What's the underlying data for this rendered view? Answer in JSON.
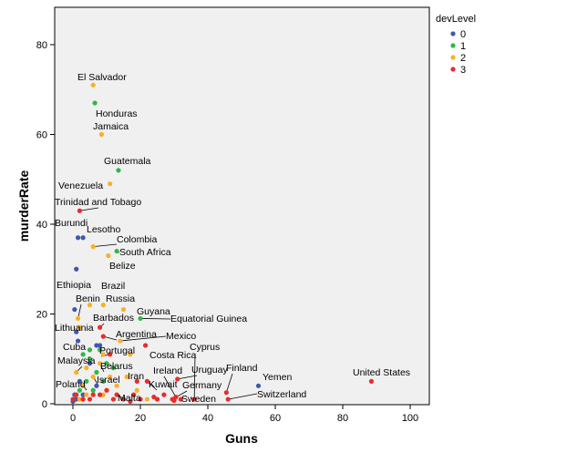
{
  "chart_data": {
    "type": "scatter",
    "title": "",
    "xlabel": "Guns",
    "ylabel": "murderRate",
    "xlim": [
      -5,
      105
    ],
    "ylim": [
      0,
      88
    ],
    "xticks": [
      "0",
      "20",
      "40",
      "60",
      "80",
      "100"
    ],
    "xtick_values": [
      0,
      20,
      40,
      60,
      80,
      100
    ],
    "yticks": [
      "0",
      "20",
      "40",
      "60",
      "80"
    ],
    "ytick_values": [
      0,
      20,
      40,
      60,
      80
    ],
    "grid": false,
    "legend": {
      "title": "devLevel",
      "position": "top-right",
      "entries": [
        {
          "label": "0",
          "color": "#3e58ac"
        },
        {
          "label": "1",
          "color": "#2eb848"
        },
        {
          "label": "2",
          "color": "#fbb022"
        },
        {
          "label": "3",
          "color": "#ec2a2a"
        }
      ]
    },
    "series": [
      {
        "name": "0",
        "color": "#3e58ac",
        "points": [
          {
            "x": 1.5,
            "y": 37
          },
          {
            "x": 3,
            "y": 37
          },
          {
            "x": 1,
            "y": 30
          },
          {
            "x": 0.5,
            "y": 21
          },
          {
            "x": 1,
            "y": 16
          },
          {
            "x": 1.5,
            "y": 14
          },
          {
            "x": 7,
            "y": 13
          },
          {
            "x": 8,
            "y": 13
          },
          {
            "x": 55,
            "y": 4
          },
          {
            "x": 0.5,
            "y": 2
          },
          {
            "x": 7,
            "y": 4
          },
          {
            "x": 3,
            "y": 2
          },
          {
            "x": 1,
            "y": 1
          },
          {
            "x": 2,
            "y": 5
          },
          {
            "x": 5,
            "y": 9
          },
          {
            "x": 0,
            "y": 0.5
          }
        ]
      },
      {
        "name": "1",
        "color": "#2eb848",
        "points": [
          {
            "x": 6.5,
            "y": 67
          },
          {
            "x": 13.5,
            "y": 52
          },
          {
            "x": 13,
            "y": 34
          },
          {
            "x": 20,
            "y": 19
          },
          {
            "x": 3,
            "y": 11
          },
          {
            "x": 5,
            "y": 12
          },
          {
            "x": 8,
            "y": 12
          },
          {
            "x": 5,
            "y": 10
          },
          {
            "x": 7,
            "y": 7
          },
          {
            "x": 10,
            "y": 9
          },
          {
            "x": 2,
            "y": 3
          },
          {
            "x": 4,
            "y": 5
          },
          {
            "x": 6,
            "y": 3
          },
          {
            "x": 9,
            "y": 5
          },
          {
            "x": 12,
            "y": 8
          }
        ]
      },
      {
        "name": "2",
        "color": "#fbb022",
        "points": [
          {
            "x": 6,
            "y": 71
          },
          {
            "x": 8.5,
            "y": 60
          },
          {
            "x": 11,
            "y": 49
          },
          {
            "x": 6,
            "y": 35
          },
          {
            "x": 10.5,
            "y": 33
          },
          {
            "x": 5,
            "y": 22
          },
          {
            "x": 9,
            "y": 22
          },
          {
            "x": 15,
            "y": 21
          },
          {
            "x": 1.5,
            "y": 19
          },
          {
            "x": 2,
            "y": 17
          },
          {
            "x": 14,
            "y": 14
          },
          {
            "x": 17,
            "y": 11
          },
          {
            "x": 9,
            "y": 11
          },
          {
            "x": 4,
            "y": 8
          },
          {
            "x": 8,
            "y": 9
          },
          {
            "x": 1,
            "y": 7
          },
          {
            "x": 6,
            "y": 6
          },
          {
            "x": 11,
            "y": 6
          },
          {
            "x": 16,
            "y": 6
          },
          {
            "x": 3,
            "y": 4
          },
          {
            "x": 13,
            "y": 4
          },
          {
            "x": 19,
            "y": 3
          },
          {
            "x": 4,
            "y": 2
          },
          {
            "x": 9,
            "y": 2
          },
          {
            "x": 15,
            "y": 1
          },
          {
            "x": 2,
            "y": 1
          },
          {
            "x": 22,
            "y": 1
          },
          {
            "x": 25,
            "y": 1
          }
        ]
      },
      {
        "name": "3",
        "color": "#ec2a2a",
        "points": [
          {
            "x": 2,
            "y": 43
          },
          {
            "x": 8,
            "y": 17
          },
          {
            "x": 9,
            "y": 15
          },
          {
            "x": 21.5,
            "y": 13
          },
          {
            "x": 11,
            "y": 11
          },
          {
            "x": 88.5,
            "y": 5
          },
          {
            "x": 45.5,
            "y": 2.5
          },
          {
            "x": 46,
            "y": 1
          },
          {
            "x": 31,
            "y": 5.5
          },
          {
            "x": 30.5,
            "y": 1.5
          },
          {
            "x": 29.5,
            "y": 1
          },
          {
            "x": 30,
            "y": 0.7
          },
          {
            "x": 22,
            "y": 5
          },
          {
            "x": 19,
            "y": 5
          },
          {
            "x": 18,
            "y": 2
          },
          {
            "x": 13,
            "y": 2
          },
          {
            "x": 24,
            "y": 1.5
          },
          {
            "x": 25,
            "y": 1
          },
          {
            "x": 27,
            "y": 2
          },
          {
            "x": 12,
            "y": 1
          },
          {
            "x": 8,
            "y": 2
          },
          {
            "x": 5,
            "y": 1
          },
          {
            "x": 6,
            "y": 2
          },
          {
            "x": 10,
            "y": 3
          },
          {
            "x": 3,
            "y": 1
          },
          {
            "x": 1,
            "y": 2
          },
          {
            "x": 15,
            "y": 1
          },
          {
            "x": 17,
            "y": 0.5
          },
          {
            "x": 20,
            "y": 1
          },
          {
            "x": 32,
            "y": 1
          },
          {
            "x": 0,
            "y": 1
          },
          {
            "x": 36,
            "y": 1
          }
        ]
      }
    ],
    "annotations": [
      {
        "text": "El Salvador",
        "x": 6,
        "y": 71
      },
      {
        "text": "Honduras",
        "x": 6.5,
        "y": 67
      },
      {
        "text": "Jamaica",
        "x": 8.5,
        "y": 60
      },
      {
        "text": "Guatemala",
        "x": 13.5,
        "y": 52
      },
      {
        "text": "Venezuela",
        "x": 11,
        "y": 49
      },
      {
        "text": "Trinidad and Tobago",
        "x": 2,
        "y": 43
      },
      {
        "text": "Burundi",
        "x": 1.5,
        "y": 37
      },
      {
        "text": "Lesotho",
        "x": 3,
        "y": 37
      },
      {
        "text": "Colombia",
        "x": 6,
        "y": 35
      },
      {
        "text": "South Africa",
        "x": 13,
        "y": 34
      },
      {
        "text": "Belize",
        "x": 10.5,
        "y": 33
      },
      {
        "text": "Ethiopia",
        "x": 0.5,
        "y": 21
      },
      {
        "text": "Brazil",
        "x": 9,
        "y": 22
      },
      {
        "text": "Benin",
        "x": 1.5,
        "y": 19
      },
      {
        "text": "Russia",
        "x": 15,
        "y": 21
      },
      {
        "text": "Guyana",
        "x": 20,
        "y": 19
      },
      {
        "text": "Barbados",
        "x": 8,
        "y": 17
      },
      {
        "text": "Equatorial Guinea",
        "x": 20,
        "y": 19
      },
      {
        "text": "Lithuania",
        "x": 2,
        "y": 17
      },
      {
        "text": "Argentina",
        "x": 9,
        "y": 15
      },
      {
        "text": "Mexico",
        "x": 14,
        "y": 14
      },
      {
        "text": "Cuba",
        "x": 1.5,
        "y": 14
      },
      {
        "text": "Portugal",
        "x": 11,
        "y": 11
      },
      {
        "text": "Cyprus",
        "x": 36,
        "y": 1
      },
      {
        "text": "Costa Rica",
        "x": 21.5,
        "y": 13
      },
      {
        "text": "Malaysia",
        "x": 1,
        "y": 7
      },
      {
        "text": "Belarus",
        "x": 8,
        "y": 9
      },
      {
        "text": "Finland",
        "x": 45.5,
        "y": 2.5
      },
      {
        "text": "Uruguay",
        "x": 31,
        "y": 5.5
      },
      {
        "text": "Ireland",
        "x": 30.5,
        "y": 1.5
      },
      {
        "text": "Iran",
        "x": 16,
        "y": 6
      },
      {
        "text": "Yemen",
        "x": 55,
        "y": 4
      },
      {
        "text": "United States",
        "x": 88.5,
        "y": 5
      },
      {
        "text": "Israel",
        "x": 6,
        "y": 6
      },
      {
        "text": "Kuwait",
        "x": 22,
        "y": 5
      },
      {
        "text": "Germany",
        "x": 29.5,
        "y": 1
      },
      {
        "text": "Poland",
        "x": 3,
        "y": 4
      },
      {
        "text": "Switzerland",
        "x": 46,
        "y": 1
      },
      {
        "text": "Malta",
        "x": 13,
        "y": 2
      },
      {
        "text": "Sweden",
        "x": 30,
        "y": 0.7
      }
    ]
  }
}
